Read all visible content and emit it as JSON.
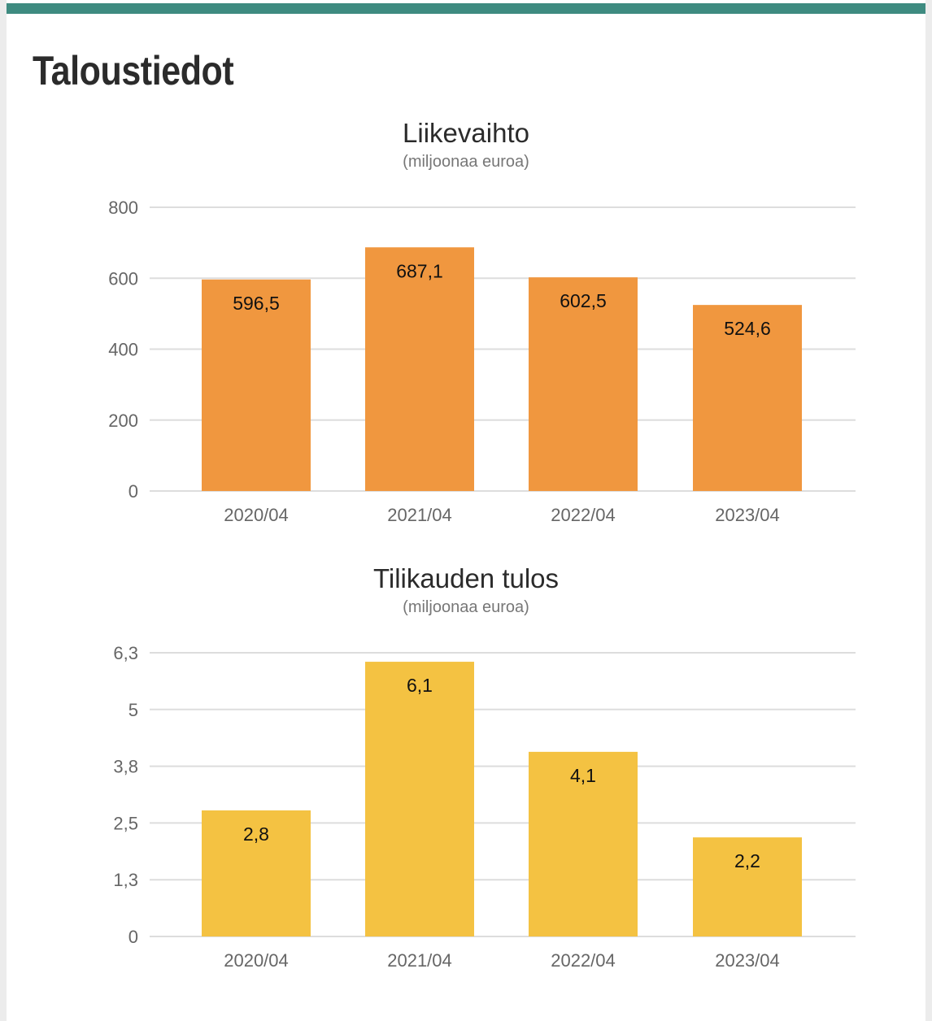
{
  "page": {
    "heading": "Taloustiedot",
    "accent_color": "#3e8b80"
  },
  "chart_data": [
    {
      "type": "bar",
      "title": "Liikevaihto",
      "subtitle": "(miljoonaa euroa)",
      "categories": [
        "2020/04",
        "2021/04",
        "2022/04",
        "2023/04"
      ],
      "values": [
        596.5,
        687.1,
        602.5,
        524.6
      ],
      "value_labels": [
        "596,5",
        "687,1",
        "602,5",
        "524,6"
      ],
      "yticks": [
        0,
        200,
        400,
        600,
        800
      ],
      "ytick_labels": [
        "0",
        "200",
        "400",
        "600",
        "800"
      ],
      "ylim": [
        0,
        800
      ],
      "grid": true,
      "color": "#f0973f"
    },
    {
      "type": "bar",
      "title": "Tilikauden tulos",
      "subtitle": "(miljoonaa euroa)",
      "categories": [
        "2020/04",
        "2021/04",
        "2022/04",
        "2023/04"
      ],
      "values": [
        2.8,
        6.1,
        4.1,
        2.2
      ],
      "value_labels": [
        "2,8",
        "6,1",
        "4,1",
        "2,2"
      ],
      "yticks": [
        0,
        1.26,
        2.52,
        3.78,
        5.04,
        6.3
      ],
      "ytick_labels": [
        "0",
        "1,3",
        "2,5",
        "3,8",
        "5",
        "6,3"
      ],
      "ylim": [
        0,
        6.3
      ],
      "grid": true,
      "color": "#f4c242"
    }
  ]
}
